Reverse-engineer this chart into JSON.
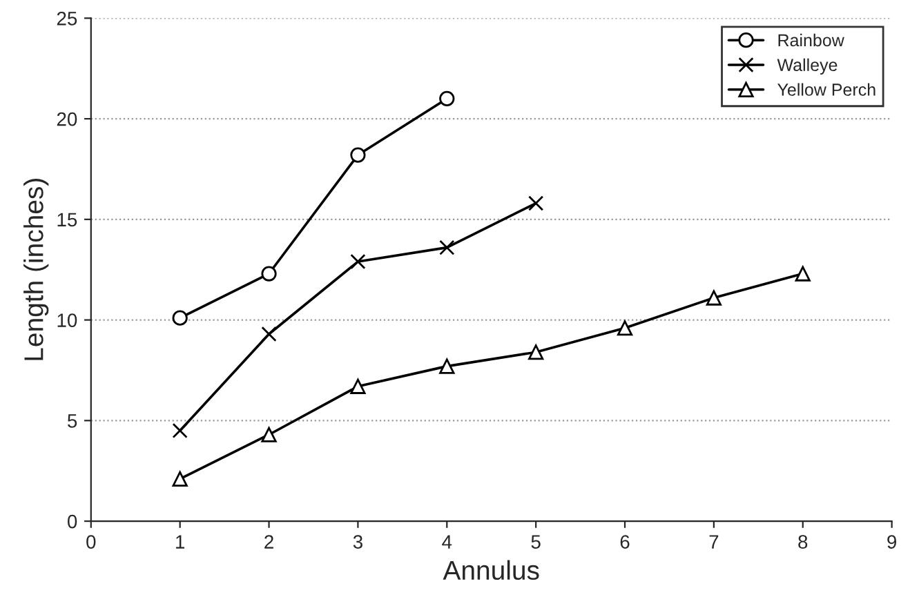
{
  "chart_data": {
    "type": "line",
    "xlabel": "Annulus",
    "ylabel": "Length (inches)",
    "series": [
      {
        "name": "Rainbow",
        "color": "#000000",
        "marker": "circle",
        "x": [
          1,
          2,
          3,
          4
        ],
        "values": [
          10.1,
          12.3,
          18.2,
          21.0
        ]
      },
      {
        "name": "Walleye",
        "color": "#000000",
        "marker": "cross",
        "x": [
          1,
          2,
          3,
          4,
          5
        ],
        "values": [
          4.5,
          9.3,
          12.9,
          13.6,
          15.8
        ]
      },
      {
        "name": "Yellow Perch",
        "color": "#000000",
        "marker": "triangle",
        "x": [
          1,
          2,
          3,
          4,
          5,
          6,
          7,
          8
        ],
        "values": [
          2.1,
          4.3,
          6.7,
          7.7,
          8.4,
          9.6,
          11.1,
          12.3
        ]
      }
    ],
    "xlim": [
      0,
      9
    ],
    "xticks": [
      0,
      1,
      2,
      3,
      4,
      5,
      6,
      7,
      8,
      9
    ],
    "ylim": [
      0,
      25
    ],
    "yticks": [
      0,
      5,
      10,
      15,
      20,
      25
    ],
    "grid": "y",
    "legend": "top right",
    "line_style": "solid"
  }
}
